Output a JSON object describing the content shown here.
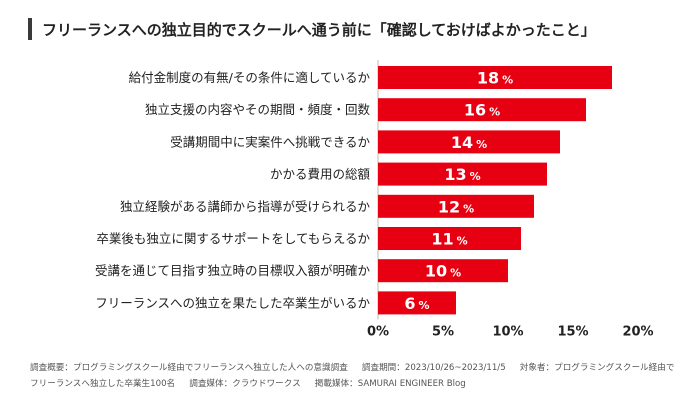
{
  "header": {
    "title": "フリーランスへの独立目的でスクールへ通う前に「確認しておけばよかったこと」"
  },
  "chart_data": {
    "type": "bar",
    "orientation": "horizontal",
    "categories": [
      "給付金制度の有無/その条件に適しているか",
      "独立支援の内容やその期間・頻度・回数",
      "受講期間中に実案件へ挑戦できるか",
      "かかる費用の総額",
      "独立経験がある講師から指導が受けられるか",
      "卒業後も独立に関するサポートをしてもらえるか",
      "受講を通じて目指す独立時の目標収入額が明確か",
      "フリーランスへの独立を果たした卒業生がいるか"
    ],
    "values": [
      18,
      16,
      14,
      13,
      12,
      11,
      10,
      6
    ],
    "unit": "%",
    "xlim": [
      0,
      20
    ],
    "xticks": [
      0,
      5,
      10,
      15,
      20
    ],
    "xtick_labels": [
      "0%",
      "5%",
      "10%",
      "15%",
      "20%"
    ],
    "bar_color": "#e60012",
    "label_color": "#ffffff"
  },
  "footnote": {
    "survey_summary": "調査概要：プログラミングスクール経由でフリーランスへ独立した人への意識調査",
    "survey_period": "調査期間：2023/10/26~2023/11/5",
    "target": "対象者：プログラミングスクール経由でフリーランスへ独立した卒業生100名",
    "medium": "調査媒体：クラウドワークス",
    "publisher": "掲載媒体：SAMURAI ENGINEER Blog"
  }
}
